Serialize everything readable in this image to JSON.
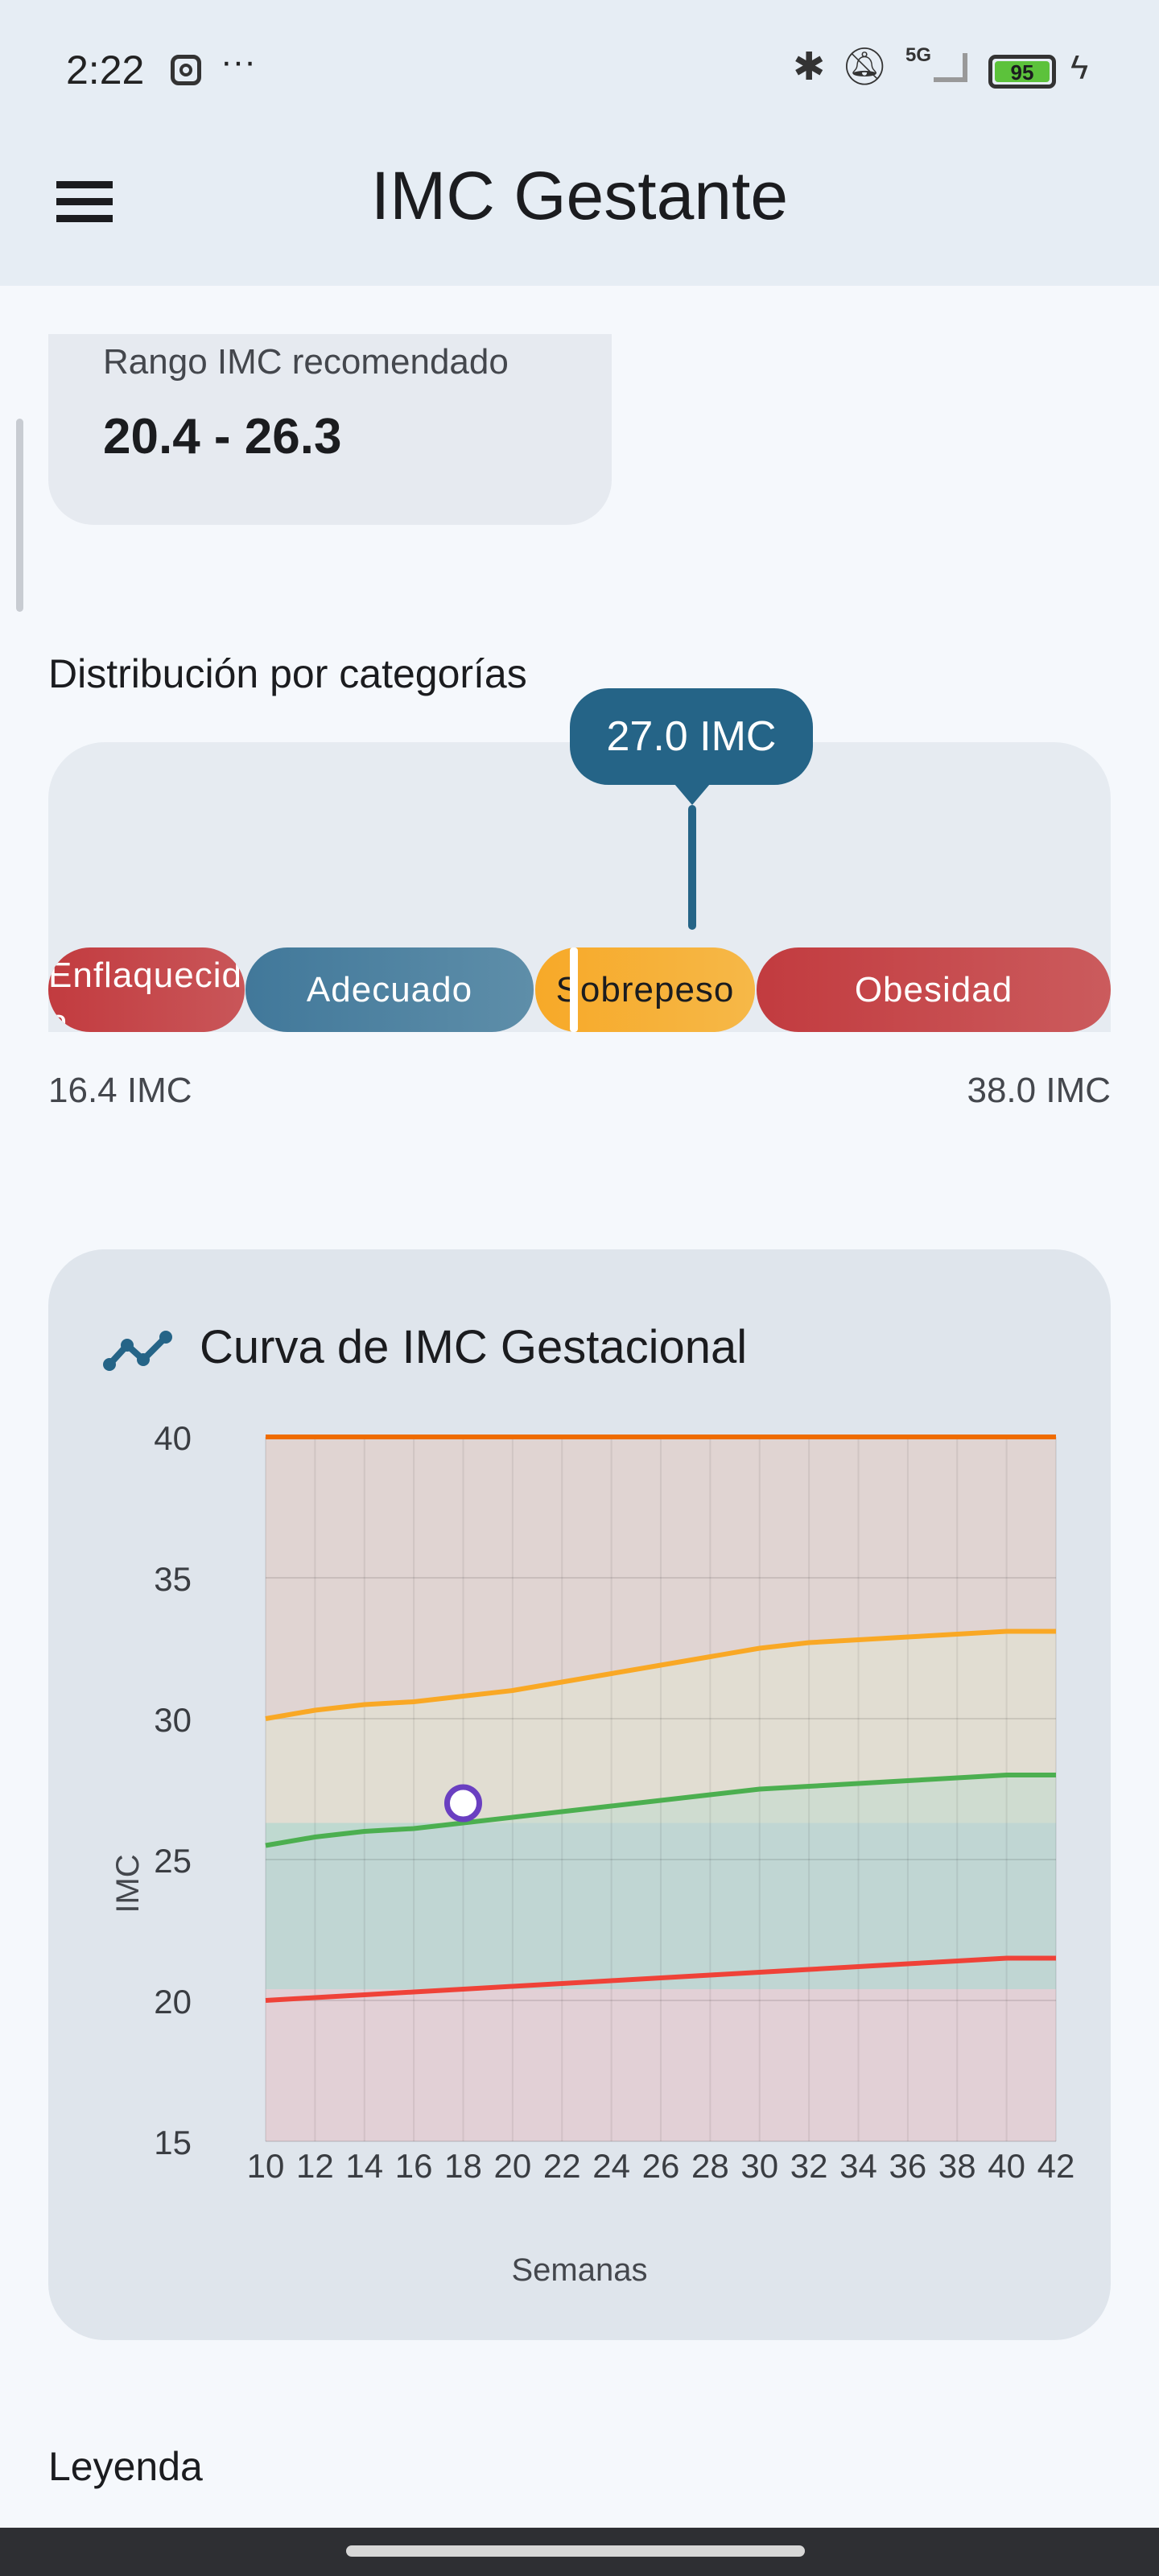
{
  "status_bar": {
    "time": "2:22",
    "battery": "95",
    "network": "5G"
  },
  "app_bar": {
    "title": "IMC Gestante",
    "menu_icon": "hamburger-icon"
  },
  "range_card": {
    "label": "Rango IMC recomendado",
    "value": "20.4 - 26.3"
  },
  "distribution": {
    "heading": "Distribución por categorías",
    "current_label": "27.0 IMC",
    "current_value": 27.0,
    "categories": [
      {
        "label": "Enflaquecida",
        "color": "#c23b3f"
      },
      {
        "label": "Adecuado",
        "color": "#467b9c"
      },
      {
        "label": "Sobrepeso",
        "color": "#f7a928"
      },
      {
        "label": "Obesidad",
        "color": "#c23b3f"
      }
    ],
    "min_label": "16.4 IMC",
    "max_label": "38.0 IMC"
  },
  "chart_card": {
    "title": "Curva de IMC Gestacional"
  },
  "chart_data": {
    "type": "line",
    "title": "Curva de IMC Gestacional",
    "xlabel": "Semanas",
    "ylabel": "IMC",
    "xlim": [
      10,
      42
    ],
    "ylim": [
      15,
      40
    ],
    "x": [
      10,
      12,
      14,
      16,
      18,
      20,
      22,
      24,
      26,
      28,
      30,
      32,
      34,
      36,
      38,
      40,
      42
    ],
    "xticks": [
      "10",
      "12",
      "14",
      "16",
      "18",
      "20",
      "22",
      "24",
      "26",
      "28",
      "30",
      "32",
      "34",
      "36",
      "38",
      "40",
      "42"
    ],
    "yticks": [
      "15",
      "20",
      "25",
      "30",
      "35",
      "40"
    ],
    "recommended_band": [
      20.4,
      26.3
    ],
    "series": [
      {
        "name": "enflaquecida-limit",
        "color": "#ef4238",
        "values": [
          20.0,
          20.1,
          20.2,
          20.3,
          20.4,
          20.5,
          20.6,
          20.7,
          20.8,
          20.9,
          21.0,
          21.1,
          21.2,
          21.3,
          21.4,
          21.5,
          21.5
        ]
      },
      {
        "name": "adecuado-limit",
        "color": "#4caf50",
        "values": [
          25.5,
          25.8,
          26.0,
          26.1,
          26.3,
          26.5,
          26.7,
          26.9,
          27.1,
          27.3,
          27.5,
          27.6,
          27.7,
          27.8,
          27.9,
          28.0,
          28.0
        ]
      },
      {
        "name": "sobrepeso-limit",
        "color": "#f9a825",
        "values": [
          30.0,
          30.3,
          30.5,
          30.6,
          30.8,
          31.0,
          31.3,
          31.6,
          31.9,
          32.2,
          32.5,
          32.7,
          32.8,
          32.9,
          33.0,
          33.1,
          33.1
        ]
      },
      {
        "name": "obesidad-limit",
        "color": "#ef6c00",
        "values": [
          40,
          40,
          40,
          40,
          40,
          40,
          40,
          40,
          40,
          40,
          40,
          40,
          40,
          40,
          40,
          40,
          40
        ]
      }
    ],
    "point": {
      "x": 18,
      "y": 27.0,
      "color": "#6a3fc1"
    }
  },
  "legend": {
    "heading": "Leyenda"
  }
}
